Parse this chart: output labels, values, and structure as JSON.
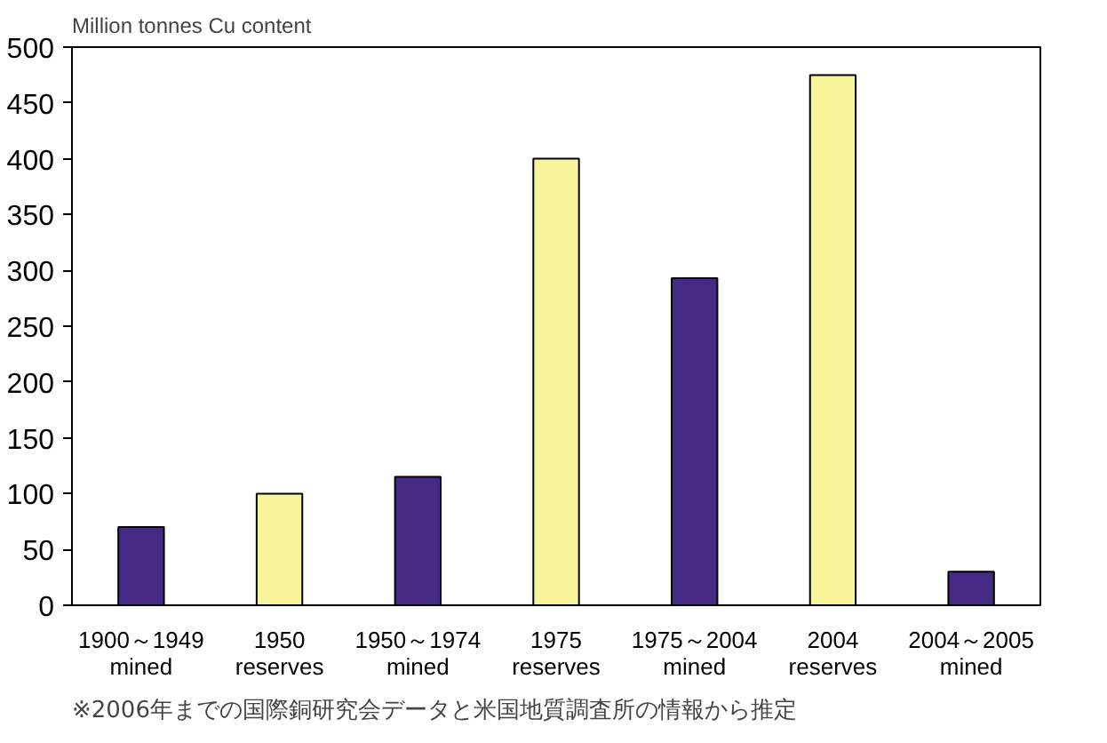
{
  "chart_data": {
    "type": "bar",
    "ylabel": "Million tonnes Cu content",
    "categories": [
      "1900～1949\nmined",
      "1950\nreserves",
      "1950～1974\nmined",
      "1975\nreserves",
      "1975～2004\nmined",
      "2004\nreserves",
      "2004～2005\nmined"
    ],
    "values": [
      70,
      100,
      115,
      400,
      293,
      475,
      30
    ],
    "colors": [
      "#452a85",
      "#f8f49a",
      "#452a85",
      "#f8f49a",
      "#452a85",
      "#f8f49a",
      "#452a85"
    ],
    "ylim": [
      0,
      500
    ],
    "yticks": [
      0,
      50,
      100,
      150,
      200,
      250,
      300,
      350,
      400,
      450,
      500
    ],
    "grid": false,
    "annotations": [
      "※2006年までの国際銅研究会データと米国地質調査所の情報から推定"
    ]
  }
}
